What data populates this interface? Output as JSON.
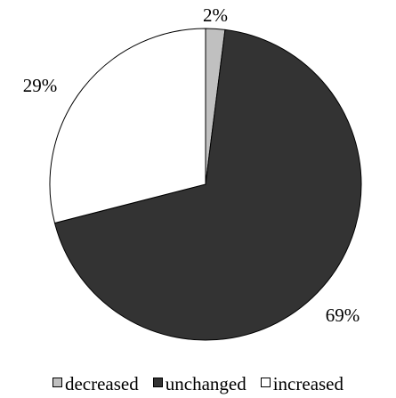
{
  "chart_data": {
    "type": "pie",
    "slices": [
      {
        "label": "decreased",
        "value": 2,
        "display": "2%",
        "color": "#c0c0c0"
      },
      {
        "label": "unchanged",
        "value": 69,
        "display": "69%",
        "color": "#333333"
      },
      {
        "label": "increased",
        "value": 29,
        "display": "29%",
        "color": "#ffffff"
      }
    ],
    "start_angle": "12 o'clock",
    "direction": "clockwise",
    "stroke_color": "#000000",
    "legend_position": "bottom"
  }
}
